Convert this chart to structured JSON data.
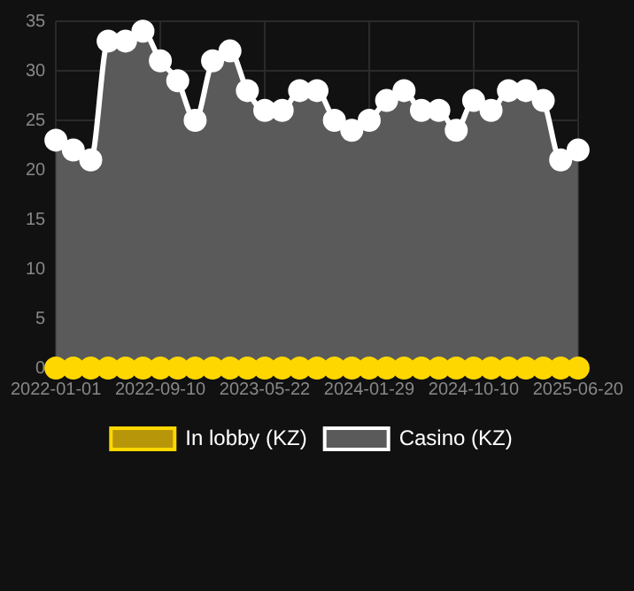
{
  "chart_data": {
    "type": "area",
    "categories": [
      "2022-01-01",
      null,
      null,
      null,
      null,
      null,
      "2022-09-10",
      null,
      null,
      null,
      null,
      null,
      "2023-05-22",
      null,
      null,
      null,
      null,
      null,
      "2024-01-29",
      null,
      null,
      null,
      null,
      null,
      "2024-10-10",
      null,
      null,
      null,
      null,
      null,
      "2025-06-20"
    ],
    "series": [
      {
        "name": "In lobby (KZ)",
        "type": "line",
        "color": "#ffd700",
        "values": [
          0,
          0,
          0,
          0,
          0,
          0,
          0,
          0,
          0,
          0,
          0,
          0,
          0,
          0,
          0,
          0,
          0,
          0,
          0,
          0,
          0,
          0,
          0,
          0,
          0,
          0,
          0,
          0,
          0,
          0,
          0
        ]
      },
      {
        "name": "Casino (KZ)",
        "color": "#ffffff",
        "values": [
          23,
          22,
          21,
          33,
          33,
          34,
          31,
          29,
          25,
          31,
          32,
          28,
          26,
          26,
          28,
          28,
          25,
          24,
          25,
          27,
          28,
          26,
          26,
          24,
          27,
          26,
          28,
          28,
          27,
          21,
          22
        ]
      }
    ],
    "ylim": [
      0,
      35
    ],
    "yticks": [
      0,
      5,
      10,
      15,
      20,
      25,
      30,
      35
    ],
    "grid": true,
    "legend": "bottom",
    "marker": "circle"
  }
}
